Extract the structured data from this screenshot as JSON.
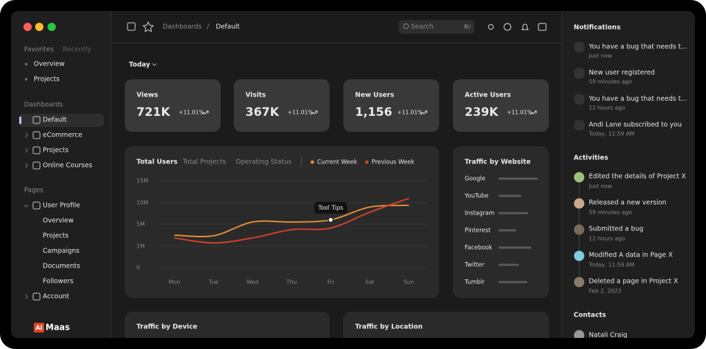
{
  "sidebar": {
    "tabs": [
      "Favorites",
      "Recently"
    ],
    "favorites": [
      "Overview",
      "Projects"
    ],
    "dashboards_heading": "Dashboards",
    "dashboards": [
      "Default",
      "eCommerce",
      "Projects",
      "Online Courses"
    ],
    "pages_heading": "Pages",
    "pages": [
      {
        "label": "User Profile",
        "children": [
          "Overview",
          "Projects",
          "Campaigns",
          "Documents",
          "Followers"
        ]
      },
      {
        "label": "Account"
      }
    ],
    "logo": {
      "mark": "Ai",
      "name": "Maas"
    }
  },
  "topbar": {
    "breadcrumb": [
      "Dashboards",
      "Default"
    ],
    "separator": "/",
    "search": "Search",
    "shortcut": "⌘/"
  },
  "main": {
    "period": "Today",
    "stats": [
      {
        "label": "Views",
        "value": "721K",
        "change": "+11.01%"
      },
      {
        "label": "Visits",
        "value": "367K",
        "change": "+11.01%"
      },
      {
        "label": "New Users",
        "value": "1,156",
        "change": "+11.01%"
      },
      {
        "label": "Active Users",
        "value": "239K",
        "change": "+11.01%"
      }
    ],
    "users_chart": {
      "tabs": [
        "Total Users",
        "Total Projects",
        "Operating Status"
      ],
      "chart_data": {
        "type": "line",
        "categories": [
          "Mon",
          "Tue",
          "Wed",
          "Thu",
          "Fri",
          "Sat",
          "Sun"
        ],
        "series": [
          {
            "name": "Current Week",
            "color": "#e8913a",
            "values": [
              3000000,
              2900000,
              5500000,
              5500000,
              6000000,
              9000000,
              9400000
            ]
          },
          {
            "name": "Previous Week",
            "color": "#d6412e",
            "values": [
              2500000,
              1600000,
              2500000,
              4000000,
              4300000,
              7800000,
              11000000
            ]
          }
        ],
        "ylim": [
          0,
          15000000
        ],
        "yticks": [
          0,
          {
            "value": 1000000,
            "label": "1M"
          },
          {
            "value": 5000000,
            "label": "5M"
          },
          {
            "value": 10000000,
            "label": "10M"
          },
          {
            "value": 15000000,
            "label": "15M"
          }
        ],
        "grid": true,
        "tooltip": "Tool Tips"
      }
    },
    "traffic_by_website": {
      "title": "Traffic by Website",
      "chart_data": {
        "type": "bar",
        "categories": [
          "Google",
          "YouTube",
          "Instagram",
          "Pinterest",
          "Facebook",
          "Twitter",
          "Tumblr"
        ],
        "values": [
          95,
          55,
          72,
          43,
          79,
          50,
          70
        ],
        "xlim": [
          0,
          100
        ],
        "color": "#5c5c5c"
      }
    },
    "bottom_cards": [
      "Traffic by Device",
      "Traffic by Location"
    ]
  },
  "right_panel": {
    "notifications": {
      "title": "Notifications",
      "items": [
        {
          "text": "You have a bug that needs t...",
          "time": "Just now"
        },
        {
          "text": "New user registered",
          "time": "59 minutes ago"
        },
        {
          "text": "You have a bug that needs t...",
          "time": "12 hours ago"
        },
        {
          "text": "Andi Lane subscribed to you",
          "time": "Today, 11:59 AM"
        }
      ]
    },
    "activities": {
      "title": "Activities",
      "items": [
        {
          "text": "Edited the details of Project X",
          "time": "Just now"
        },
        {
          "text": "Released a new version",
          "time": "59 minutes ago"
        },
        {
          "text": "Submitted a bug",
          "time": "12 hours ago"
        },
        {
          "text": "Modified A data in Page X",
          "time": "Today, 11:59 AM"
        },
        {
          "text": "Deleted a page in Project X",
          "time": "Feb 2, 2023"
        }
      ]
    },
    "contacts": {
      "title": "Contacts",
      "items": [
        "Natali Craig"
      ]
    }
  }
}
